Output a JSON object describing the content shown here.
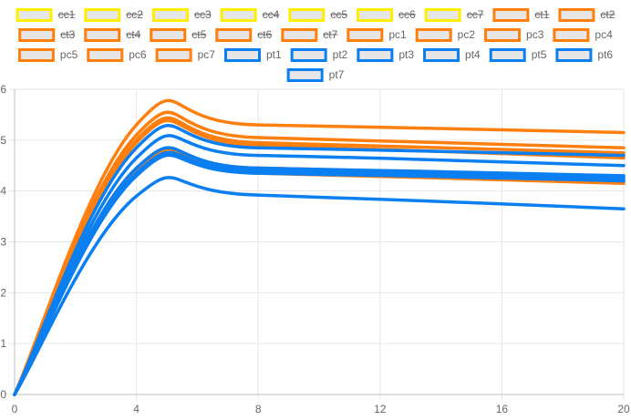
{
  "chart_data": {
    "type": "line",
    "x": [
      0,
      4,
      8,
      20
    ],
    "xticks": [
      "0",
      "4",
      "8",
      "12",
      "16",
      "20"
    ],
    "yticks": [
      "0",
      "1",
      "2",
      "3",
      "4",
      "5",
      "6"
    ],
    "xlim": [
      0,
      20
    ],
    "ylim": [
      0,
      6
    ],
    "grid": true,
    "legend_position": "top",
    "series": [
      {
        "name": "cc1",
        "group": "cc",
        "hidden": true,
        "values": [
          0,
          0,
          0,
          0
        ]
      },
      {
        "name": "cc2",
        "group": "cc",
        "hidden": true,
        "values": [
          0,
          0,
          0,
          0
        ]
      },
      {
        "name": "cc3",
        "group": "cc",
        "hidden": true,
        "values": [
          0,
          0,
          0,
          0
        ]
      },
      {
        "name": "cc4",
        "group": "cc",
        "hidden": true,
        "values": [
          0,
          0,
          0,
          0
        ]
      },
      {
        "name": "cc5",
        "group": "cc",
        "hidden": true,
        "values": [
          0,
          0,
          0,
          0
        ]
      },
      {
        "name": "cc6",
        "group": "cc",
        "hidden": true,
        "values": [
          0,
          0,
          0,
          0
        ]
      },
      {
        "name": "cc7",
        "group": "cc",
        "hidden": true,
        "values": [
          0,
          0,
          0,
          0
        ]
      },
      {
        "name": "ct1",
        "group": "c",
        "hidden": true,
        "values": [
          0,
          0,
          0,
          0
        ]
      },
      {
        "name": "ct2",
        "group": "c",
        "hidden": true,
        "values": [
          0,
          0,
          0,
          0
        ]
      },
      {
        "name": "ct3",
        "group": "c",
        "hidden": true,
        "values": [
          0,
          0,
          0,
          0
        ]
      },
      {
        "name": "ct4",
        "group": "c",
        "hidden": true,
        "values": [
          0,
          0,
          0,
          0
        ]
      },
      {
        "name": "ct5",
        "group": "c",
        "hidden": true,
        "values": [
          0,
          0,
          0,
          0
        ]
      },
      {
        "name": "ct6",
        "group": "c",
        "hidden": true,
        "values": [
          0,
          0,
          0,
          0
        ]
      },
      {
        "name": "ct7",
        "group": "c",
        "hidden": true,
        "values": [
          0,
          0,
          0,
          0
        ]
      },
      {
        "name": "pc1",
        "group": "c",
        "hidden": false,
        "values": [
          0,
          5.3,
          5.3,
          5.15
        ]
      },
      {
        "name": "pc2",
        "group": "c",
        "hidden": false,
        "values": [
          0,
          5.1,
          5.05,
          4.85
        ]
      },
      {
        "name": "pc3",
        "group": "c",
        "hidden": false,
        "values": [
          0,
          5.0,
          4.95,
          4.75
        ]
      },
      {
        "name": "pc4",
        "group": "c",
        "hidden": false,
        "values": [
          0,
          4.95,
          4.9,
          4.65
        ]
      },
      {
        "name": "pc5",
        "group": "c",
        "hidden": false,
        "values": [
          0,
          4.4,
          4.45,
          4.25
        ]
      },
      {
        "name": "pc6",
        "group": "c",
        "hidden": false,
        "values": [
          0,
          4.45,
          4.4,
          4.2
        ]
      },
      {
        "name": "pc7",
        "group": "c",
        "hidden": false,
        "values": [
          0,
          4.35,
          4.35,
          4.15
        ]
      },
      {
        "name": "pt1",
        "group": "t",
        "hidden": false,
        "values": [
          0,
          4.85,
          4.85,
          4.7
        ]
      },
      {
        "name": "pt2",
        "group": "t",
        "hidden": false,
        "values": [
          0,
          4.65,
          4.7,
          4.5
        ]
      },
      {
        "name": "pt3",
        "group": "t",
        "hidden": false,
        "values": [
          0,
          4.45,
          4.45,
          4.3
        ]
      },
      {
        "name": "pt4",
        "group": "t",
        "hidden": false,
        "values": [
          0,
          4.35,
          4.4,
          4.25
        ]
      },
      {
        "name": "pt5",
        "group": "t",
        "hidden": false,
        "values": [
          0,
          4.3,
          4.4,
          4.2
        ]
      },
      {
        "name": "pt6",
        "group": "t",
        "hidden": false,
        "values": [
          0,
          4.3,
          4.35,
          4.2
        ]
      },
      {
        "name": "pt7",
        "group": "t",
        "hidden": false,
        "values": [
          0,
          3.9,
          3.92,
          3.65
        ]
      }
    ]
  },
  "colors": {
    "cc_border": "#ffee00",
    "c_border": "#ff7f0e",
    "t_border": "#0a7ff1",
    "legend_fill": "#e6e6e6",
    "grid": "#e6e6e6",
    "axis": "#bfbfbf",
    "text": "#666666"
  }
}
